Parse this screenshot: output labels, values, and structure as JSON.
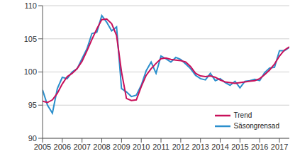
{
  "chart_data": {
    "type": "line",
    "x": [
      2005,
      2005.25,
      2005.5,
      2005.75,
      2006,
      2006.25,
      2006.5,
      2006.75,
      2007,
      2007.25,
      2007.5,
      2007.75,
      2008,
      2008.25,
      2008.5,
      2008.75,
      2009,
      2009.25,
      2009.5,
      2009.75,
      2010,
      2010.25,
      2010.5,
      2010.75,
      2011,
      2011.25,
      2011.5,
      2011.75,
      2012,
      2012.25,
      2012.5,
      2012.75,
      2013,
      2013.25,
      2013.5,
      2013.75,
      2014,
      2014.25,
      2014.5,
      2014.75,
      2015,
      2015.25,
      2015.5,
      2015.75,
      2016,
      2016.25,
      2016.5,
      2016.75,
      2017,
      2017.25,
      2017.5
    ],
    "series": [
      {
        "name": "Trend",
        "color": "#c8105a",
        "marker": "none",
        "line_style": "solid",
        "values": [
          95.6,
          95.4,
          95.8,
          96.8,
          98.2,
          99.3,
          99.8,
          100.5,
          101.6,
          103.2,
          104.9,
          106.5,
          107.9,
          108.0,
          107.3,
          105.5,
          100.0,
          96.0,
          95.7,
          95.8,
          97.8,
          99.5,
          100.5,
          101.3,
          102.0,
          102.1,
          101.9,
          101.8,
          101.7,
          101.5,
          100.8,
          99.8,
          99.4,
          99.3,
          99.4,
          99.2,
          98.8,
          98.5,
          98.4,
          98.3,
          98.4,
          98.5,
          98.6,
          98.7,
          99.0,
          99.6,
          100.3,
          101.2,
          102.4,
          103.3,
          103.8
        ]
      },
      {
        "name": "Säsongrensad",
        "color": "#2b8fcc",
        "marker": "none",
        "line_style": "solid",
        "values": [
          97.3,
          95.0,
          93.8,
          97.5,
          99.2,
          99.0,
          100.0,
          100.5,
          102.0,
          103.5,
          105.8,
          106.0,
          108.5,
          107.5,
          106.2,
          106.8,
          97.5,
          97.0,
          96.3,
          96.5,
          98.0,
          100.2,
          101.5,
          99.8,
          102.4,
          102.0,
          101.5,
          102.2,
          101.9,
          101.2,
          100.5,
          99.5,
          99.0,
          98.8,
          99.8,
          98.7,
          99.0,
          98.4,
          98.0,
          98.6,
          97.6,
          98.6,
          98.7,
          98.9,
          98.7,
          99.9,
          100.6,
          100.7,
          103.2,
          103.2,
          103.7
        ]
      }
    ],
    "xlim": [
      2005,
      2017.5
    ],
    "xticks": [
      2005,
      2006,
      2007,
      2008,
      2009,
      2010,
      2011,
      2012,
      2013,
      2014,
      2015,
      2016,
      2017
    ],
    "ylim": [
      90,
      110
    ],
    "yticks": [
      90,
      95,
      100,
      105,
      110
    ],
    "grid": true,
    "legend": "lower right"
  }
}
